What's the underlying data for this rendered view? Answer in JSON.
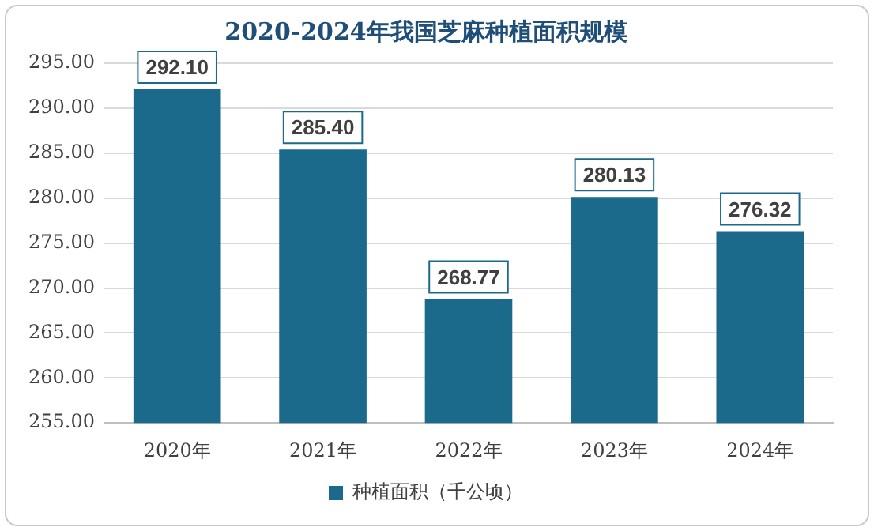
{
  "chart_data": {
    "type": "bar",
    "title": "2020-2024年我国芝麻种植面积规模",
    "categories": [
      "2020年",
      "2021年",
      "2022年",
      "2023年",
      "2024年"
    ],
    "series": [
      {
        "name": "种植面积（千公顷）",
        "color": "#1b6a8c",
        "values": [
          292.1,
          285.4,
          268.77,
          280.13,
          276.32
        ],
        "value_labels": [
          "292.10",
          "285.40",
          "268.77",
          "280.13",
          "276.32"
        ]
      }
    ],
    "ylim": [
      255,
      295
    ],
    "yticks": [
      {
        "value": 255,
        "label": "255.00"
      },
      {
        "value": 260,
        "label": "260.00"
      },
      {
        "value": 265,
        "label": "265.00"
      },
      {
        "value": 270,
        "label": "270.00"
      },
      {
        "value": 275,
        "label": "275.00"
      },
      {
        "value": 280,
        "label": "280.00"
      },
      {
        "value": 285,
        "label": "285.00"
      },
      {
        "value": 290,
        "label": "290.00"
      },
      {
        "value": 295,
        "label": "295.00"
      }
    ],
    "grid": "y",
    "legend": "bottom"
  }
}
